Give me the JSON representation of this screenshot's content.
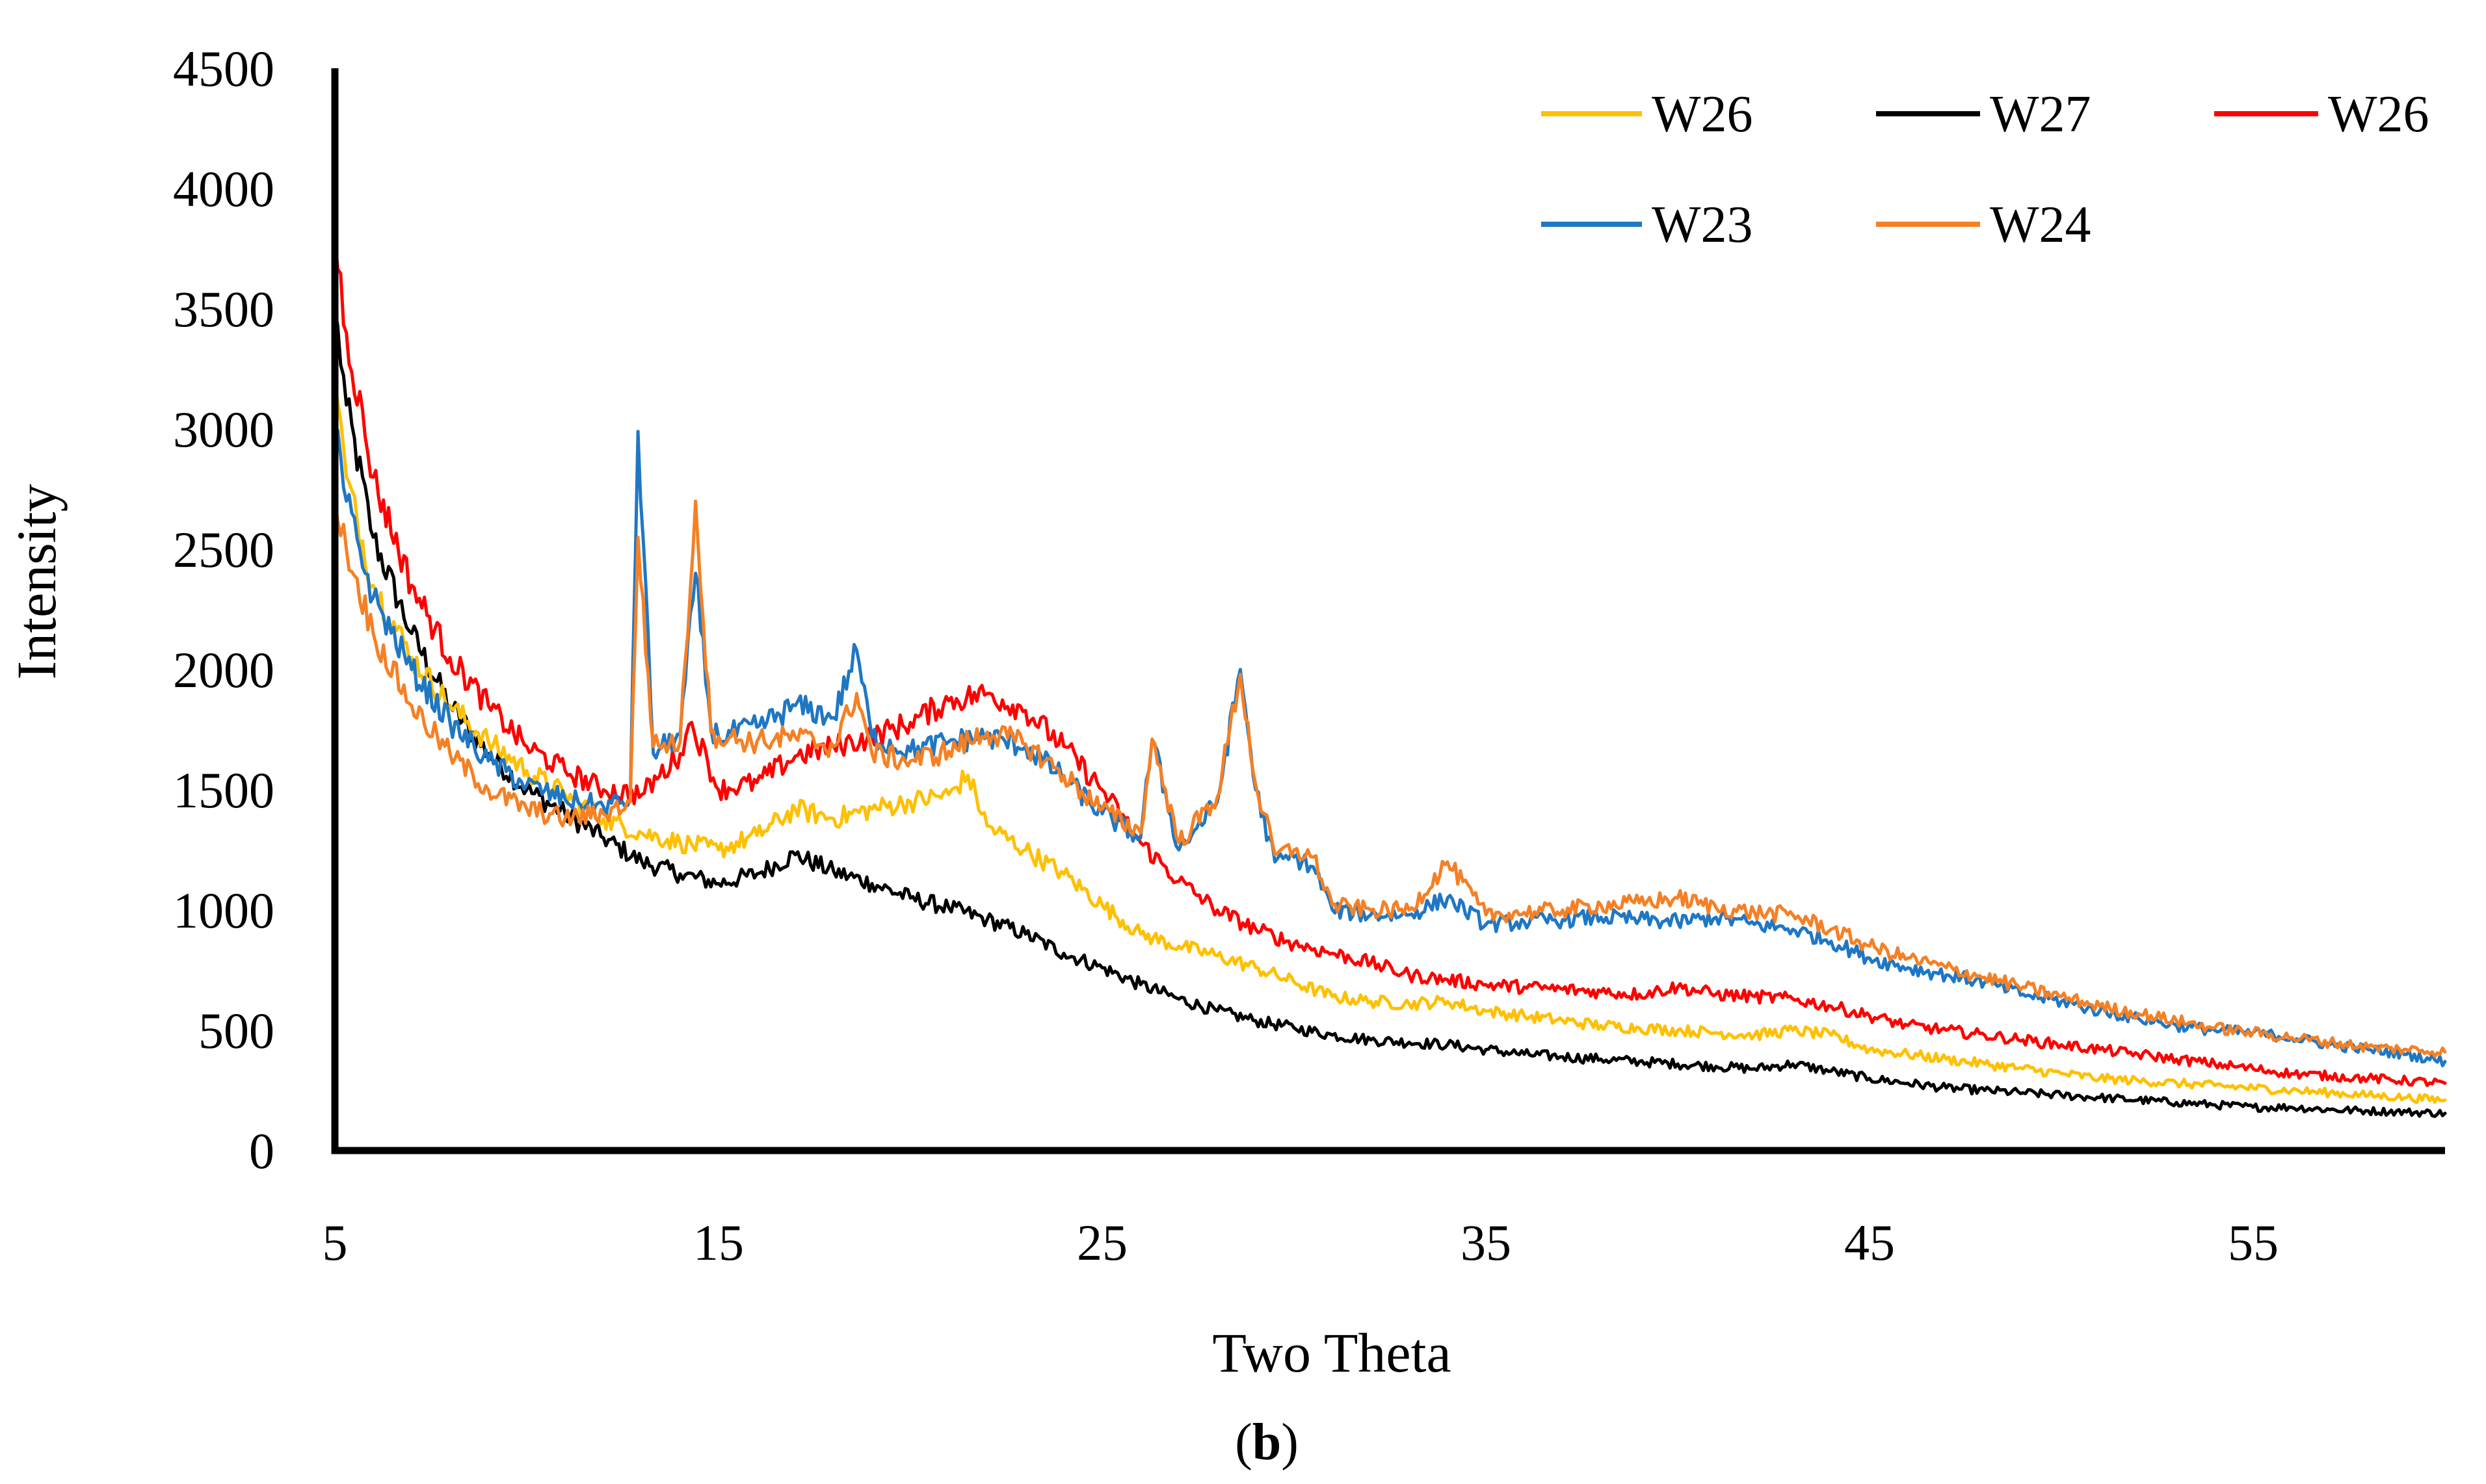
{
  "chart_data": {
    "type": "line",
    "title": "",
    "xlabel": "Two Theta",
    "ylabel": "Intensity",
    "caption_open": "(",
    "caption_bold": "b",
    "caption_close": ")",
    "xlim": [
      5,
      60
    ],
    "ylim": [
      0,
      4500
    ],
    "xticks": [
      5,
      15,
      25,
      35,
      45,
      55
    ],
    "yticks": [
      0,
      500,
      1000,
      1500,
      2000,
      2500,
      3000,
      3500,
      4000,
      4500
    ],
    "grid": false,
    "legend_position": "top-right",
    "legend_order": [
      0,
      1,
      2,
      3,
      4
    ],
    "draw_order": [
      1,
      0,
      2,
      3,
      4
    ],
    "series": [
      {
        "name": "W26",
        "color": "#FFC000",
        "x": [
          5,
          5.3,
          6,
          7,
          8,
          9,
          10,
          11,
          12,
          13,
          14,
          15,
          16,
          17,
          18,
          19,
          20,
          21,
          21.5,
          22,
          23,
          24,
          25,
          26,
          27,
          28,
          29,
          30,
          31,
          32,
          33,
          34,
          35,
          36,
          37,
          38,
          39,
          40,
          41,
          42,
          43,
          44,
          45,
          46,
          47,
          48,
          49,
          50,
          51,
          52,
          53,
          54,
          55,
          56,
          57,
          58,
          59,
          60
        ],
        "values": [
          3200,
          2800,
          2350,
          2050,
          1850,
          1700,
          1580,
          1480,
          1380,
          1320,
          1280,
          1250,
          1310,
          1420,
          1380,
          1420,
          1450,
          1480,
          1560,
          1350,
          1250,
          1150,
          1020,
          900,
          850,
          810,
          760,
          700,
          640,
          620,
          610,
          620,
          580,
          560,
          540,
          520,
          510,
          500,
          490,
          480,
          500,
          480,
          420,
          400,
          380,
          360,
          340,
          320,
          300,
          290,
          280,
          270,
          260,
          250,
          240,
          230,
          220,
          210
        ]
      },
      {
        "name": "W27",
        "color": "#000000",
        "x": [
          5,
          5.3,
          6,
          7,
          8,
          9,
          10,
          11,
          12,
          13,
          14,
          15,
          16,
          17,
          18,
          19,
          20,
          21,
          22,
          23,
          24,
          25,
          26,
          27,
          28,
          29,
          30,
          31,
          32,
          33,
          34,
          35,
          36,
          37,
          38,
          39,
          40,
          41,
          42,
          43,
          44,
          45,
          46,
          47,
          48,
          49,
          50,
          51,
          52,
          53,
          54,
          55,
          56,
          57,
          58,
          59,
          60
        ],
        "values": [
          3500,
          3100,
          2550,
          2150,
          1850,
          1650,
          1500,
          1400,
          1300,
          1200,
          1150,
          1110,
          1150,
          1230,
          1160,
          1110,
          1050,
          1010,
          960,
          900,
          820,
          760,
          690,
          630,
          580,
          540,
          510,
          480,
          460,
          450,
          440,
          420,
          400,
          390,
          380,
          370,
          360,
          350,
          340,
          360,
          330,
          300,
          280,
          260,
          250,
          240,
          230,
          220,
          210,
          200,
          190,
          180,
          180,
          170,
          165,
          160,
          155
        ]
      },
      {
        "name": "W26",
        "color": "#FF0000",
        "x": [
          5,
          5.3,
          6,
          7,
          8,
          9,
          10,
          11,
          12,
          13,
          14,
          14.3,
          15,
          16,
          17,
          18,
          19,
          20,
          21,
          22,
          23,
          24,
          25,
          26,
          27,
          28,
          29,
          30,
          31,
          32,
          33,
          34,
          35,
          36,
          37,
          38,
          39,
          40,
          41,
          42,
          43,
          44,
          45,
          46,
          47,
          48,
          49,
          50,
          51,
          52,
          53,
          54,
          55,
          56,
          57,
          58,
          59,
          60
        ],
        "values": [
          3800,
          3400,
          2800,
          2350,
          2050,
          1850,
          1680,
          1580,
          1500,
          1480,
          1650,
          1780,
          1500,
          1530,
          1640,
          1680,
          1720,
          1780,
          1870,
          1900,
          1830,
          1680,
          1500,
          1280,
          1120,
          1000,
          920,
          860,
          820,
          780,
          730,
          710,
          690,
          680,
          670,
          660,
          650,
          680,
          650,
          640,
          630,
          600,
          560,
          520,
          500,
          480,
          460,
          440,
          420,
          400,
          380,
          360,
          340,
          320,
          310,
          300,
          290,
          280
        ]
      },
      {
        "name": "W23",
        "color": "#1F77C4",
        "x": [
          5,
          5.3,
          6,
          7,
          8,
          9,
          10,
          11,
          12,
          12.7,
          12.9,
          13.3,
          14,
          14.4,
          14.8,
          15,
          16,
          17,
          18,
          18.6,
          19,
          20,
          21,
          22,
          23,
          24,
          25,
          26,
          26.3,
          27,
          28,
          28.6,
          29,
          29.5,
          30,
          30.5,
          31,
          32,
          33,
          34,
          35,
          36,
          37,
          38,
          39,
          40,
          41,
          42,
          43,
          44,
          45,
          46,
          47,
          48,
          49,
          50,
          51,
          52,
          53,
          54,
          55,
          56,
          57,
          58,
          59,
          60
        ],
        "values": [
          3000,
          2700,
          2300,
          2000,
          1780,
          1620,
          1520,
          1460,
          1430,
          1460,
          2990,
          1650,
          1730,
          2400,
          1760,
          1720,
          1760,
          1850,
          1800,
          2080,
          1720,
          1660,
          1700,
          1720,
          1680,
          1550,
          1400,
          1300,
          1710,
          1250,
          1450,
          2000,
          1500,
          1200,
          1220,
          1180,
          1000,
          980,
          980,
          1050,
          940,
          950,
          960,
          970,
          960,
          950,
          970,
          940,
          920,
          870,
          800,
          760,
          730,
          700,
          650,
          620,
          580,
          550,
          520,
          500,
          490,
          470,
          440,
          420,
          400,
          370
        ]
      },
      {
        "name": "W24",
        "color": "#F58025",
        "x": [
          5,
          5.3,
          6,
          7,
          8,
          9,
          10,
          11,
          12,
          12.7,
          12.9,
          13.3,
          14,
          14.4,
          14.8,
          15,
          16,
          17,
          18,
          18.6,
          19,
          20,
          21,
          22,
          23,
          24,
          25,
          26,
          26.3,
          27,
          28,
          28.6,
          29,
          29.5,
          30,
          30.5,
          31,
          32,
          33,
          34,
          35,
          36,
          37,
          38,
          39,
          40,
          41,
          42,
          43,
          44,
          45,
          46,
          47,
          48,
          49,
          50,
          51,
          52,
          53,
          54,
          55,
          56,
          57,
          58,
          59,
          60
        ],
        "values": [
          2700,
          2500,
          2150,
          1850,
          1650,
          1500,
          1420,
          1380,
          1400,
          1450,
          2550,
          1680,
          1700,
          2700,
          1740,
          1720,
          1700,
          1720,
          1680,
          1900,
          1650,
          1620,
          1660,
          1740,
          1690,
          1560,
          1420,
          1320,
          1710,
          1280,
          1470,
          1980,
          1520,
          1230,
          1250,
          1220,
          1020,
          1000,
          1000,
          1200,
          980,
          990,
          1000,
          1020,
          1030,
          1050,
          1010,
          990,
          980,
          920,
          850,
          800,
          760,
          720,
          680,
          640,
          600,
          570,
          540,
          510,
          490,
          470,
          450,
          430,
          420,
          410
        ]
      }
    ]
  }
}
